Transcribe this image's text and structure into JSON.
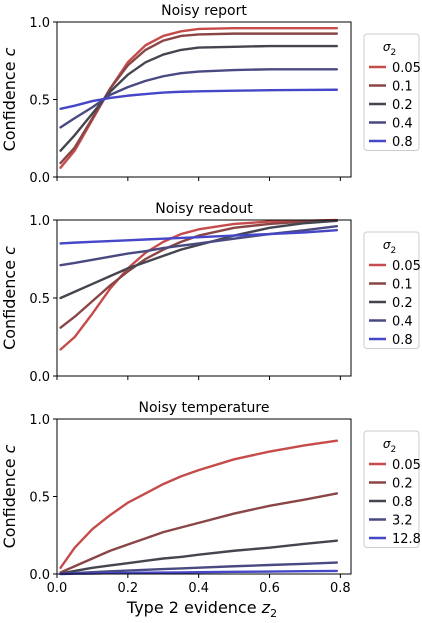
{
  "figure": {
    "xlabel": "Type 2 evidence",
    "xlabel_var": "z",
    "xlabel_sub": "2",
    "legend_title_var": "σ",
    "legend_title_sub": "2",
    "ylabel_text": "Confidence",
    "ylabel_var": "c"
  },
  "chart_data": [
    {
      "type": "line",
      "title": "Noisy report",
      "ylabel": "Confidence c",
      "xlim": [
        0,
        0.83
      ],
      "ylim": [
        0,
        1.0
      ],
      "xticks": [
        0.0,
        0.2,
        0.4,
        0.6,
        0.8
      ],
      "yticks": [
        "0.0",
        "0.5",
        "1.0"
      ],
      "legend_title": "σ2",
      "legend_position": "right-outside",
      "x": [
        0.01,
        0.05,
        0.1,
        0.15,
        0.2,
        0.25,
        0.3,
        0.35,
        0.4,
        0.5,
        0.6,
        0.7,
        0.79
      ],
      "series": [
        {
          "name": "0.05",
          "color": "#c64b4b",
          "values": [
            0.06,
            0.17,
            0.37,
            0.57,
            0.74,
            0.85,
            0.91,
            0.94,
            0.955,
            0.96,
            0.96,
            0.96,
            0.96
          ]
        },
        {
          "name": "0.1",
          "color": "#8a4646",
          "values": [
            0.09,
            0.19,
            0.38,
            0.57,
            0.72,
            0.82,
            0.88,
            0.91,
            0.92,
            0.925,
            0.925,
            0.925,
            0.925
          ]
        },
        {
          "name": "0.2",
          "color": "#454550",
          "values": [
            0.17,
            0.27,
            0.41,
            0.55,
            0.66,
            0.74,
            0.79,
            0.82,
            0.835,
            0.84,
            0.845,
            0.845,
            0.845
          ]
        },
        {
          "name": "0.4",
          "color": "#4a4a82",
          "values": [
            0.32,
            0.38,
            0.45,
            0.53,
            0.58,
            0.62,
            0.65,
            0.67,
            0.68,
            0.69,
            0.695,
            0.695,
            0.695
          ]
        },
        {
          "name": "0.8",
          "color": "#4646c8",
          "values": [
            0.44,
            0.46,
            0.49,
            0.51,
            0.525,
            0.535,
            0.545,
            0.55,
            0.553,
            0.557,
            0.56,
            0.562,
            0.563
          ]
        }
      ]
    },
    {
      "type": "line",
      "title": "Noisy readout",
      "ylabel": "Confidence c",
      "xlim": [
        0,
        0.83
      ],
      "ylim": [
        0,
        1.0
      ],
      "xticks": [
        0.0,
        0.2,
        0.4,
        0.6,
        0.8
      ],
      "yticks": [
        "0.0",
        "0.5",
        "1.0"
      ],
      "legend_title": "σ2",
      "legend_position": "right-outside",
      "x": [
        0.01,
        0.05,
        0.1,
        0.15,
        0.2,
        0.25,
        0.3,
        0.35,
        0.4,
        0.5,
        0.6,
        0.7,
        0.79
      ],
      "series": [
        {
          "name": "0.05",
          "color": "#c64b4b",
          "values": [
            0.17,
            0.25,
            0.4,
            0.56,
            0.69,
            0.79,
            0.86,
            0.91,
            0.94,
            0.975,
            0.99,
            0.995,
            1.0
          ]
        },
        {
          "name": "0.1",
          "color": "#8a4646",
          "values": [
            0.31,
            0.38,
            0.48,
            0.58,
            0.67,
            0.75,
            0.81,
            0.86,
            0.9,
            0.95,
            0.975,
            0.99,
            0.995
          ]
        },
        {
          "name": "0.2",
          "color": "#454550",
          "values": [
            0.5,
            0.54,
            0.59,
            0.64,
            0.69,
            0.73,
            0.77,
            0.81,
            0.84,
            0.9,
            0.95,
            0.98,
            0.995
          ]
        },
        {
          "name": "0.4",
          "color": "#4a4a82",
          "values": [
            0.71,
            0.725,
            0.745,
            0.765,
            0.785,
            0.8,
            0.82,
            0.835,
            0.85,
            0.88,
            0.91,
            0.935,
            0.96
          ]
        },
        {
          "name": "0.8",
          "color": "#4646c8",
          "values": [
            0.85,
            0.855,
            0.86,
            0.865,
            0.87,
            0.875,
            0.88,
            0.885,
            0.89,
            0.9,
            0.91,
            0.92,
            0.935
          ]
        }
      ]
    },
    {
      "type": "line",
      "title": "Noisy temperature",
      "ylabel": "Confidence c",
      "xlabel": "Type 2 evidence z2",
      "xlim": [
        0,
        0.83
      ],
      "ylim": [
        0,
        1.0
      ],
      "xticks": [
        0.0,
        0.2,
        0.4,
        0.6,
        0.8
      ],
      "xticklabels": [
        "0.0",
        "0.2",
        "0.4",
        "0.6",
        "0.8"
      ],
      "yticks": [
        "0.0",
        "0.5",
        "1.0"
      ],
      "legend_title": "σ2",
      "legend_position": "right-outside",
      "x": [
        0.01,
        0.05,
        0.1,
        0.15,
        0.2,
        0.25,
        0.3,
        0.35,
        0.4,
        0.5,
        0.6,
        0.7,
        0.79
      ],
      "series": [
        {
          "name": "0.05",
          "color": "#c64b4b",
          "values": [
            0.04,
            0.17,
            0.29,
            0.38,
            0.46,
            0.52,
            0.58,
            0.63,
            0.67,
            0.74,
            0.79,
            0.83,
            0.86
          ]
        },
        {
          "name": "0.2",
          "color": "#8a4646",
          "values": [
            0.01,
            0.05,
            0.1,
            0.15,
            0.19,
            0.23,
            0.27,
            0.3,
            0.33,
            0.39,
            0.44,
            0.48,
            0.52
          ]
        },
        {
          "name": "0.8",
          "color": "#454550",
          "values": [
            0.003,
            0.02,
            0.04,
            0.055,
            0.07,
            0.085,
            0.1,
            0.11,
            0.125,
            0.15,
            0.17,
            0.195,
            0.215
          ]
        },
        {
          "name": "3.2",
          "color": "#4a4a82",
          "values": [
            0.001,
            0.006,
            0.012,
            0.017,
            0.022,
            0.027,
            0.032,
            0.036,
            0.041,
            0.05,
            0.058,
            0.066,
            0.074
          ]
        },
        {
          "name": "12.8",
          "color": "#4646c8",
          "values": [
            0.0,
            0.002,
            0.003,
            0.005,
            0.006,
            0.008,
            0.009,
            0.01,
            0.012,
            0.014,
            0.016,
            0.018,
            0.02
          ]
        }
      ]
    }
  ]
}
